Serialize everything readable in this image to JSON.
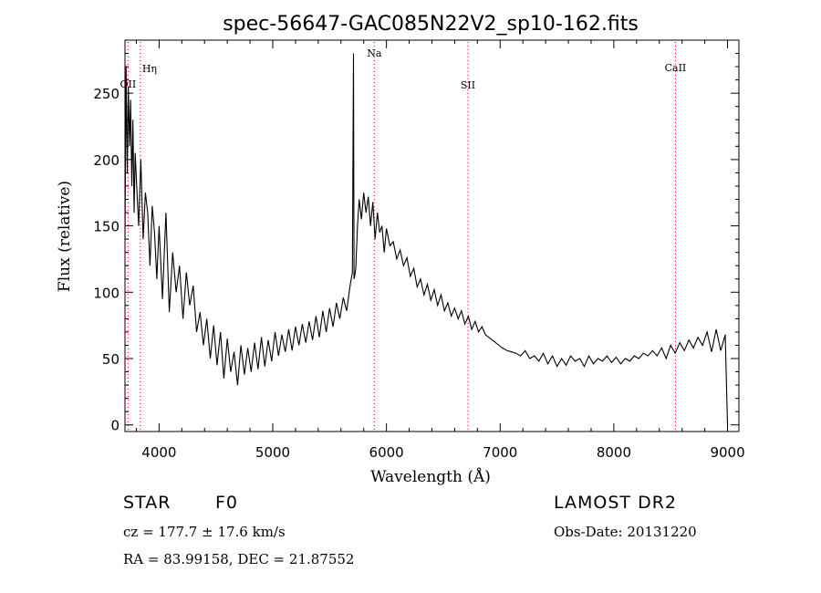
{
  "chart_data": {
    "type": "line",
    "title": "spec-56647-GAC085N22V2_sp10-162.fits",
    "xlabel": "Wavelength (Å)",
    "ylabel": "Flux (relative)",
    "xlim": [
      3700,
      9100
    ],
    "ylim": [
      -5,
      290
    ],
    "x_ticks": [
      4000,
      5000,
      6000,
      7000,
      8000,
      9000
    ],
    "y_ticks": [
      0,
      50,
      100,
      150,
      200,
      250
    ],
    "grid": false,
    "line_color": "#000000",
    "marker_color": "#cc0000",
    "spectral_lines": [
      {
        "label": "OII",
        "wavelength": 3727
      },
      {
        "label": "Hη",
        "wavelength": 3835
      },
      {
        "label": "Na",
        "wavelength": 5893
      },
      {
        "label": "SII",
        "wavelength": 6717
      },
      {
        "label": "CaII",
        "wavelength": 8542
      }
    ],
    "series": [
      {
        "values_x": [
          3700,
          3710,
          3720,
          3730,
          3740,
          3750,
          3760,
          3770,
          3780,
          3790,
          3800,
          3820,
          3840,
          3860,
          3880,
          3900,
          3920,
          3940,
          3960,
          3980,
          4000,
          4030,
          4060,
          4090,
          4120,
          4150,
          4180,
          4210,
          4240,
          4270,
          4300,
          4330,
          4360,
          4390,
          4420,
          4450,
          4480,
          4510,
          4540,
          4570,
          4600,
          4630,
          4660,
          4690,
          4720,
          4750,
          4780,
          4810,
          4840,
          4870,
          4900,
          4930,
          4960,
          4990,
          5020,
          5050,
          5080,
          5110,
          5140,
          5170,
          5200,
          5230,
          5260,
          5290,
          5320,
          5350,
          5380,
          5410,
          5440,
          5470,
          5500,
          5530,
          5560,
          5590,
          5620,
          5650,
          5680,
          5700,
          5710,
          5715,
          5720,
          5730,
          5745,
          5760,
          5780,
          5800,
          5820,
          5840,
          5860,
          5880,
          5900,
          5920,
          5940,
          5960,
          5980,
          6000,
          6030,
          6060,
          6090,
          6120,
          6150,
          6180,
          6210,
          6240,
          6270,
          6300,
          6330,
          6360,
          6390,
          6420,
          6450,
          6480,
          6510,
          6540,
          6570,
          6600,
          6630,
          6660,
          6690,
          6720,
          6750,
          6780,
          6810,
          6840,
          6870,
          6900,
          6930,
          6960,
          6990,
          7020,
          7060,
          7100,
          7140,
          7180,
          7220,
          7260,
          7300,
          7340,
          7380,
          7420,
          7460,
          7500,
          7540,
          7580,
          7620,
          7660,
          7700,
          7740,
          7780,
          7820,
          7860,
          7900,
          7940,
          7980,
          8020,
          8060,
          8100,
          8140,
          8180,
          8220,
          8260,
          8300,
          8340,
          8380,
          8420,
          8460,
          8500,
          8540,
          8580,
          8620,
          8660,
          8700,
          8740,
          8780,
          8820,
          8860,
          8900,
          8940,
          8980,
          9000,
          9005
        ],
        "values_y": [
          140,
          270,
          190,
          255,
          210,
          245,
          180,
          230,
          160,
          205,
          185,
          150,
          200,
          140,
          175,
          160,
          120,
          165,
          145,
          110,
          150,
          95,
          160,
          85,
          130,
          100,
          120,
          80,
          115,
          90,
          105,
          70,
          85,
          60,
          80,
          50,
          75,
          45,
          70,
          35,
          65,
          40,
          55,
          30,
          60,
          38,
          58,
          40,
          62,
          42,
          66,
          44,
          64,
          48,
          70,
          52,
          68,
          55,
          72,
          56,
          74,
          60,
          76,
          62,
          78,
          64,
          82,
          66,
          86,
          70,
          88,
          74,
          92,
          80,
          96,
          86,
          105,
          115,
          280,
          110,
          112,
          118,
          150,
          170,
          155,
          175,
          160,
          172,
          150,
          168,
          140,
          160,
          145,
          150,
          130,
          148,
          135,
          138,
          125,
          132,
          120,
          126,
          112,
          118,
          104,
          110,
          98,
          106,
          94,
          102,
          90,
          98,
          86,
          92,
          82,
          88,
          80,
          86,
          76,
          82,
          72,
          78,
          70,
          74,
          68,
          66,
          64,
          62,
          60,
          58,
          56,
          55,
          54,
          52,
          56,
          50,
          52,
          48,
          54,
          46,
          52,
          44,
          50,
          45,
          52,
          48,
          50,
          44,
          52,
          46,
          50,
          48,
          52,
          47,
          51,
          46,
          50,
          48,
          52,
          50,
          54,
          52,
          56,
          52,
          58,
          50,
          60,
          54,
          62,
          56,
          64,
          58,
          66,
          60,
          70,
          55,
          72,
          56,
          68,
          0,
          0
        ]
      }
    ]
  },
  "info": {
    "object_type": "STAR",
    "spectral_class": "F0",
    "survey": "LAMOST DR2",
    "cz_line": "cz = 177.7 ± 17.6 km/s",
    "obs_date": "Obs-Date: 20131220",
    "coords": "RA =  83.99158, DEC =  21.87552"
  }
}
